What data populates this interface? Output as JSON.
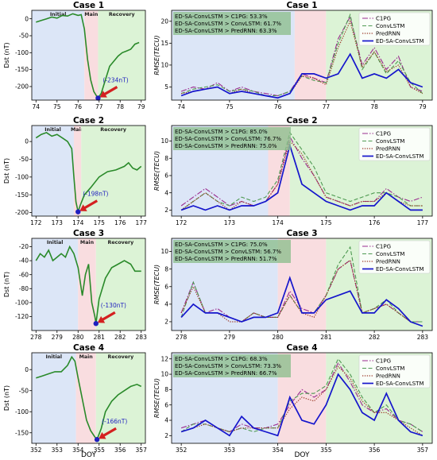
{
  "xlabel": "DOY",
  "legend_names": [
    "C1PG",
    "ConvLSTM",
    "PredRNN",
    "ED-SA-ConvLSTM"
  ],
  "colors": {
    "dst": "#2a8a2a",
    "initial": "#dce6f7",
    "main": "#f9dde0",
    "recovery": "#dcf3d6",
    "min_marker": "#1f1fbf",
    "arrow": "#d42020",
    "c1pg": "#9b2c8f",
    "convlstm": "#4f9a52",
    "predrnn": "#9c3a28",
    "edsa": "#1515cc",
    "stats_box": "#8fbf8f"
  },
  "chart_data": [
    {
      "panel": "dst",
      "type": "line",
      "title": "Case 1",
      "ylabel": "Dst (nT)",
      "xlim": [
        73.8,
        79.2
      ],
      "ylim": [
        -240,
        25
      ],
      "xticks": [
        74,
        75,
        76,
        77,
        78,
        79
      ],
      "yticks": [
        0,
        -50,
        -100,
        -150,
        -200
      ],
      "phases": [
        {
          "name": "Initial",
          "range": [
            73.8,
            76.3
          ]
        },
        {
          "name": "Main",
          "range": [
            76.3,
            76.95
          ]
        },
        {
          "name": "Recovery",
          "range": [
            76.95,
            79.2
          ]
        }
      ],
      "min_label": "(-234nT)",
      "min_point": [
        76.95,
        -234
      ],
      "x": [
        74.0,
        74.25,
        74.5,
        74.75,
        75.0,
        75.25,
        75.5,
        75.75,
        76.0,
        76.15,
        76.3,
        76.45,
        76.6,
        76.75,
        76.9,
        76.95,
        77.1,
        77.3,
        77.5,
        77.7,
        77.9,
        78.1,
        78.3,
        78.5,
        78.7,
        78.9
      ],
      "y": [
        -10,
        -5,
        0,
        5,
        2,
        10,
        8,
        15,
        10,
        12,
        -30,
        -120,
        -180,
        -215,
        -230,
        -234,
        -220,
        -180,
        -140,
        -125,
        -110,
        -100,
        -95,
        -90,
        -75,
        -70
      ]
    },
    {
      "panel": "rmse",
      "type": "line",
      "title": "Case 1",
      "ylabel": "RMSE(TECU)",
      "xlim": [
        73.8,
        79.2
      ],
      "ylim": [
        2,
        22.5
      ],
      "xticks": [
        74,
        75,
        76,
        77,
        78,
        79
      ],
      "yticks": [
        5,
        10,
        15,
        20
      ],
      "phases": [
        {
          "name": "",
          "range": [
            73.8,
            76.35
          ]
        },
        {
          "name": "",
          "range": [
            76.35,
            77.0
          ]
        },
        {
          "name": "",
          "range": [
            77.0,
            79.2
          ]
        }
      ],
      "stats": [
        "ED-SA-ConvLSTM > C1PG: 53.3%",
        "ED-SA-ConvLSTM > ConvLSTM: 61.7%",
        "ED-SA-ConvLSTM > PredRNN: 63.3%"
      ],
      "x": [
        74.0,
        74.25,
        74.5,
        74.75,
        75.0,
        75.25,
        75.5,
        75.75,
        76.0,
        76.25,
        76.5,
        76.75,
        77.0,
        77.25,
        77.5,
        77.75,
        78.0,
        78.25,
        78.5,
        78.75,
        79.0
      ],
      "series": [
        {
          "name": "C1PG",
          "values": [
            4,
            5,
            4.5,
            6,
            4,
            5,
            4,
            3.5,
            3,
            4,
            8,
            7,
            6,
            16,
            21,
            10,
            14,
            9,
            12,
            5,
            4
          ]
        },
        {
          "name": "ConvLSTM",
          "values": [
            3.5,
            4.5,
            5,
            5.5,
            4,
            4.5,
            4,
            3,
            3,
            4,
            7.5,
            6.5,
            6,
            15,
            21.5,
            9,
            13,
            8,
            11,
            6,
            3.5
          ]
        },
        {
          "name": "PredRNN",
          "values": [
            3.5,
            4,
            4.5,
            5,
            3.5,
            4.5,
            3.5,
            3,
            2.5,
            3.5,
            7.5,
            7,
            5.5,
            14,
            20,
            9.5,
            13,
            8.5,
            10,
            5,
            3.5
          ]
        },
        {
          "name": "ED-SA-ConvLSTM",
          "values": [
            3,
            4,
            4.5,
            5,
            3.5,
            4,
            3.5,
            3,
            2.5,
            3.5,
            8,
            8,
            7,
            8,
            12.5,
            7,
            8,
            7,
            9,
            6,
            5
          ]
        }
      ]
    },
    {
      "panel": "dst",
      "type": "line",
      "title": "Case 2",
      "ylabel": "Dst (nT)",
      "xlim": [
        171.8,
        177.2
      ],
      "ylim": [
        -210,
        45
      ],
      "xticks": [
        172,
        173,
        174,
        175,
        176,
        177
      ],
      "yticks": [
        0,
        -50,
        -100,
        -150,
        -200
      ],
      "phases": [
        {
          "name": "Initial",
          "range": [
            171.8,
            173.8
          ]
        },
        {
          "name": "Main",
          "range": [
            173.8,
            174.15
          ]
        },
        {
          "name": "Recovery",
          "range": [
            174.15,
            177.2
          ]
        }
      ],
      "min_label": "(-198nT)",
      "min_point": [
        174.0,
        -198
      ],
      "x": [
        172.0,
        172.25,
        172.5,
        172.75,
        173.0,
        173.25,
        173.5,
        173.7,
        173.8,
        173.9,
        174.0,
        174.1,
        174.3,
        174.6,
        175.0,
        175.4,
        175.8,
        176.2,
        176.4,
        176.6,
        176.8,
        177.0
      ],
      "y": [
        10,
        20,
        25,
        15,
        20,
        10,
        0,
        -20,
        -100,
        -170,
        -198,
        -180,
        -150,
        -130,
        -100,
        -85,
        -80,
        -70,
        -60,
        -75,
        -80,
        -70
      ]
    },
    {
      "panel": "rmse",
      "type": "line",
      "title": "Case 2",
      "ylabel": "RMSE(TECU)",
      "xlim": [
        171.8,
        177.2
      ],
      "ylim": [
        1.3,
        11.8
      ],
      "xticks": [
        172,
        173,
        174,
        175,
        176,
        177
      ],
      "yticks": [
        2,
        4,
        6,
        8,
        10
      ],
      "phases": [
        {
          "name": "",
          "range": [
            171.8,
            173.8
          ]
        },
        {
          "name": "",
          "range": [
            173.8,
            174.25
          ]
        },
        {
          "name": "",
          "range": [
            174.25,
            177.2
          ]
        }
      ],
      "stats": [
        "ED-SA-ConvLSTM > C1PG: 85.0%",
        "ED-SA-ConvLSTM > ConvLSTM: 76.7%",
        "ED-SA-ConvLSTM > PredRNN: 75.0%"
      ],
      "x": [
        172.0,
        172.25,
        172.5,
        172.75,
        173.0,
        173.25,
        173.5,
        173.75,
        174.0,
        174.25,
        174.5,
        174.75,
        175.0,
        175.25,
        175.5,
        175.75,
        176.0,
        176.25,
        176.5,
        176.75,
        177.0
      ],
      "series": [
        {
          "name": "C1PG",
          "values": [
            2.5,
            3.5,
            4.5,
            3.5,
            2.5,
            3,
            2.5,
            3,
            5,
            10.5,
            8,
            6,
            3.5,
            3,
            2.5,
            3,
            3,
            4.5,
            3.5,
            3,
            3.5
          ]
        },
        {
          "name": "ConvLSTM",
          "values": [
            2,
            3,
            4,
            3,
            2.5,
            3.5,
            3,
            3.5,
            5.5,
            11,
            9,
            7,
            4,
            3.5,
            3,
            3.5,
            4,
            4,
            3.5,
            2.5,
            2.5
          ]
        },
        {
          "name": "PredRNN",
          "values": [
            2,
            3,
            4,
            3,
            2,
            3,
            2.5,
            3,
            5,
            10,
            8.5,
            6,
            3.5,
            3,
            2.5,
            3,
            3,
            4,
            3,
            2.5,
            2.5
          ]
        },
        {
          "name": "ED-SA-ConvLSTM",
          "values": [
            2,
            2.5,
            2,
            2.5,
            2,
            2.5,
            2.5,
            3,
            4,
            9.5,
            5,
            4,
            3,
            2.5,
            2,
            2.5,
            2.5,
            4,
            3,
            2,
            2
          ]
        }
      ]
    },
    {
      "panel": "dst",
      "type": "line",
      "title": "Case 3",
      "ylabel": "Dst (nT)",
      "xlim": [
        277.8,
        283.2
      ],
      "ylim": [
        -140,
        -8
      ],
      "xticks": [
        278,
        279,
        280,
        281,
        282,
        283
      ],
      "yticks": [
        -20,
        -40,
        -60,
        -80,
        -100,
        -120
      ],
      "phases": [
        {
          "name": "Initial",
          "range": [
            277.8,
            280.0
          ]
        },
        {
          "name": "Main",
          "range": [
            280.0,
            280.85
          ]
        },
        {
          "name": "Recovery",
          "range": [
            280.85,
            283.2
          ]
        }
      ],
      "min_label": "(-130nT)",
      "min_point": [
        280.85,
        -130
      ],
      "x": [
        278.0,
        278.2,
        278.4,
        278.6,
        278.8,
        279.0,
        279.2,
        279.4,
        279.6,
        279.8,
        280.0,
        280.2,
        280.35,
        280.5,
        280.65,
        280.8,
        280.85,
        281.0,
        281.3,
        281.6,
        281.9,
        282.2,
        282.5,
        282.7,
        283.0
      ],
      "y": [
        -40,
        -30,
        -35,
        -25,
        -40,
        -35,
        -30,
        -35,
        -20,
        -30,
        -50,
        -90,
        -60,
        -45,
        -100,
        -120,
        -130,
        -95,
        -65,
        -50,
        -45,
        -40,
        -45,
        -55,
        -55
      ]
    },
    {
      "panel": "rmse",
      "type": "line",
      "title": "Case 3",
      "ylabel": "RMSE(TECU)",
      "xlim": [
        277.8,
        283.2
      ],
      "ylim": [
        1.0,
        11.5
      ],
      "xticks": [
        278,
        279,
        280,
        281,
        282,
        283
      ],
      "yticks": [
        2,
        4,
        6,
        8,
        10
      ],
      "phases": [
        {
          "name": "",
          "range": [
            277.8,
            280.0
          ]
        },
        {
          "name": "",
          "range": [
            280.0,
            281.0
          ]
        },
        {
          "name": "",
          "range": [
            281.0,
            283.2
          ]
        }
      ],
      "stats": [
        "ED-SA-ConvLSTM > C1PG: 75.0%",
        "ED-SA-ConvLSTM > ConvLSTM: 56.7%",
        "ED-SA-ConvLSTM > PredRNN: 51.7%"
      ],
      "x": [
        278.0,
        278.25,
        278.5,
        278.75,
        279.0,
        279.25,
        279.5,
        279.75,
        280.0,
        280.25,
        280.5,
        280.75,
        281.0,
        281.25,
        281.5,
        281.75,
        282.0,
        282.25,
        282.5,
        282.75,
        283.0
      ],
      "series": [
        {
          "name": "C1PG",
          "values": [
            3,
            6.5,
            3,
            3.5,
            2.5,
            2,
            3,
            2.5,
            2.5,
            5.5,
            3.5,
            3,
            5,
            8,
            9,
            3,
            3.5,
            4,
            3,
            2,
            2
          ]
        },
        {
          "name": "ConvLSTM",
          "values": [
            2.5,
            6.5,
            3,
            3,
            2.5,
            2,
            3,
            2.5,
            2.5,
            5,
            3,
            3,
            5,
            8.5,
            10.5,
            3,
            3.5,
            4.5,
            3,
            2,
            2
          ]
        },
        {
          "name": "PredRNN",
          "values": [
            3,
            6,
            3,
            3,
            2,
            2,
            3,
            2.5,
            2.5,
            5,
            3,
            2.5,
            5,
            8,
            9,
            3,
            3.5,
            4,
            3,
            2,
            1.5
          ]
        },
        {
          "name": "ED-SA-ConvLSTM",
          "values": [
            2.5,
            4,
            3,
            3,
            2.5,
            2,
            2.5,
            2.5,
            3,
            7,
            3,
            3,
            4.5,
            5,
            5.5,
            3,
            3,
            4.5,
            3.5,
            2,
            1.5
          ]
        }
      ]
    },
    {
      "panel": "dst",
      "type": "line",
      "title": "Case 4",
      "ylabel": "Dst (nT)",
      "xlim": [
        351.8,
        357.2
      ],
      "ylim": [
        -175,
        40
      ],
      "xticks": [
        352,
        353,
        354,
        355,
        356,
        357
      ],
      "yticks": [
        0,
        -50,
        -100,
        -150
      ],
      "phases": [
        {
          "name": "Initial",
          "range": [
            351.8,
            353.9
          ]
        },
        {
          "name": "Main",
          "range": [
            353.9,
            354.85
          ]
        },
        {
          "name": "Recovery",
          "range": [
            354.85,
            357.2
          ]
        }
      ],
      "min_label": "(-166nT)",
      "min_point": [
        354.9,
        -166
      ],
      "x": [
        352.0,
        352.3,
        352.6,
        352.9,
        353.2,
        353.5,
        353.7,
        353.85,
        354.0,
        354.2,
        354.4,
        354.6,
        354.8,
        354.9,
        355.1,
        355.3,
        355.6,
        355.9,
        356.2,
        356.5,
        356.8,
        357.0
      ],
      "y": [
        -20,
        -15,
        -10,
        -5,
        -5,
        10,
        30,
        20,
        -20,
        -70,
        -120,
        -145,
        -160,
        -166,
        -140,
        -100,
        -75,
        -60,
        -50,
        -40,
        -35,
        -40
      ]
    },
    {
      "panel": "rmse",
      "type": "line",
      "title": "Case 4",
      "ylabel": "RMSE(TECU)",
      "xlim": [
        351.8,
        357.2
      ],
      "ylim": [
        1.0,
        12.8
      ],
      "xticks": [
        352,
        353,
        354,
        355,
        356,
        357
      ],
      "yticks": [
        2,
        4,
        6,
        8,
        10,
        12
      ],
      "phases": [
        {
          "name": "",
          "range": [
            351.8,
            354.0
          ]
        },
        {
          "name": "",
          "range": [
            354.0,
            355.0
          ]
        },
        {
          "name": "",
          "range": [
            355.0,
            357.2
          ]
        }
      ],
      "stats": [
        "ED-SA-ConvLSTM > C1PG: 68.3%",
        "ED-SA-ConvLSTM > ConvLSTM: 73.3%",
        "ED-SA-ConvLSTM > PredRNN: 66.7%"
      ],
      "x": [
        352.0,
        352.25,
        352.5,
        352.75,
        353.0,
        353.25,
        353.5,
        353.75,
        354.0,
        354.25,
        354.5,
        354.75,
        355.0,
        355.25,
        355.5,
        355.75,
        356.0,
        356.25,
        356.5,
        356.75,
        357.0
      ],
      "series": [
        {
          "name": "C1PG",
          "values": [
            3,
            3.5,
            4,
            3,
            2.5,
            3.5,
            3,
            3,
            3.5,
            6,
            8,
            7,
            8,
            11.5,
            9,
            6,
            5,
            5.5,
            4,
            3.5,
            2.5
          ]
        },
        {
          "name": "ConvLSTM",
          "values": [
            2.5,
            3.5,
            3.5,
            3,
            2.5,
            3,
            2.5,
            3,
            3,
            6.5,
            7.5,
            7.5,
            8.5,
            12,
            10,
            7,
            5,
            6,
            4,
            3.5,
            2.5
          ]
        },
        {
          "name": "PredRNN",
          "values": [
            2.5,
            3,
            3.5,
            3,
            2.5,
            3,
            3,
            3,
            3,
            5.5,
            7,
            6.5,
            8,
            11,
            9.5,
            6.5,
            5,
            5,
            4,
            3,
            2
          ]
        },
        {
          "name": "ED-SA-ConvLSTM",
          "values": [
            2.5,
            3,
            4,
            3,
            2,
            4.5,
            3,
            2.5,
            2,
            7,
            4,
            3.5,
            6,
            10,
            8,
            5,
            4,
            7.5,
            4,
            2.5,
            2
          ]
        }
      ]
    }
  ]
}
